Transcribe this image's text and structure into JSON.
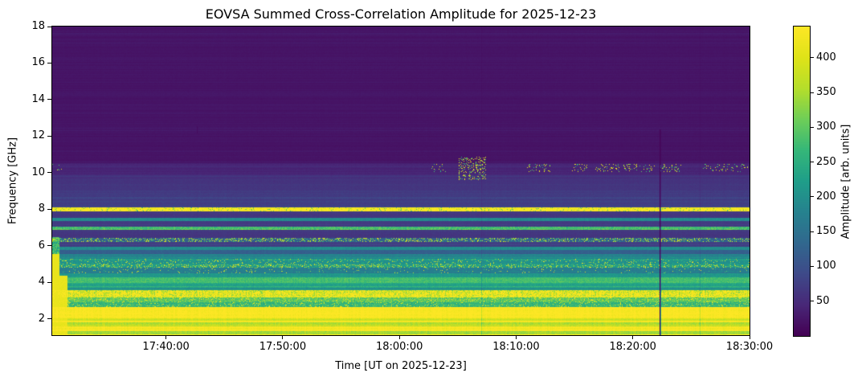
{
  "figure": {
    "background": "#ffffff",
    "text_color": "#000000"
  },
  "chart_data": {
    "type": "heatmap",
    "title": "EOVSA Summed Cross-Correlation Amplitude for 2025-12-23",
    "xlabel": "Time [UT on 2025-12-23]",
    "ylabel": "Frequency [GHz]",
    "colormap": "viridis",
    "grid": false,
    "x_axis": {
      "unit": "UT",
      "start": "17:30:15",
      "end": "18:30:00",
      "tick_labels": [
        "17:40:00",
        "17:50:00",
        "18:00:00",
        "18:10:00",
        "18:20:00",
        "18:30:00"
      ]
    },
    "y_axis": {
      "min": 1.1,
      "max": 18.0,
      "ticks": [
        2,
        4,
        6,
        8,
        10,
        12,
        14,
        16,
        18
      ]
    },
    "colorbar": {
      "label": "Amplitude [arb. units]",
      "min": 0,
      "max": 445,
      "ticks": [
        50,
        100,
        150,
        200,
        250,
        300,
        350,
        400
      ]
    },
    "frequency_bands": [
      {
        "f_hi": 18.01,
        "f_lo": 10.5,
        "amp": 22,
        "noise": 0.18,
        "stripe": 0.34
      },
      {
        "f_hi": 10.5,
        "f_lo": 9.9,
        "amp": 40,
        "noise": 0.15,
        "stripe": 0.22
      },
      {
        "f_hi": 9.9,
        "f_lo": 8.08,
        "amp": 52,
        "amp2": 80,
        "noise": 0.14,
        "stripe": 0.18
      },
      {
        "f_hi": 8.08,
        "f_lo": 7.88,
        "amp": 440,
        "noise": 0.1,
        "stripe": 0.04,
        "gap": 0.1
      },
      {
        "f_hi": 7.88,
        "f_lo": 7.52,
        "amp": 66,
        "noise": 0.15,
        "stripe": 0.2
      },
      {
        "f_hi": 7.52,
        "f_lo": 7.33,
        "amp": 195,
        "noise": 0.18,
        "stripe": 0.1
      },
      {
        "f_hi": 7.33,
        "f_lo": 7.06,
        "amp": 72,
        "noise": 0.15,
        "stripe": 0.2
      },
      {
        "f_hi": 7.06,
        "f_lo": 6.86,
        "amp": 285,
        "noise": 0.22,
        "stripe": 0.1
      },
      {
        "f_hi": 6.86,
        "f_lo": 6.42,
        "amp": 64,
        "noise": 0.15,
        "stripe": 0.22
      },
      {
        "f_hi": 6.42,
        "f_lo": 6.2,
        "amp": 112,
        "noise": 0.2,
        "stripe": 0.15,
        "speckle": 0.3
      },
      {
        "f_hi": 6.2,
        "f_lo": 5.95,
        "amp": 70,
        "noise": 0.15,
        "stripe": 0.2
      },
      {
        "f_hi": 5.95,
        "f_lo": 5.76,
        "amp": 195,
        "noise": 0.15,
        "stripe": 0.1
      },
      {
        "f_hi": 5.76,
        "f_lo": 5.54,
        "amp": 120,
        "noise": 0.15,
        "stripe": 0.15
      },
      {
        "f_hi": 5.54,
        "f_lo": 5.28,
        "amp": 175,
        "noise": 0.15,
        "stripe": 0.12
      },
      {
        "f_hi": 5.28,
        "f_lo": 4.97,
        "amp": 205,
        "noise": 0.15,
        "stripe": 0.12,
        "speckle": 0.1
      },
      {
        "f_hi": 4.97,
        "f_lo": 4.8,
        "amp": 215,
        "noise": 0.18,
        "stripe": 0.1,
        "speckle": 0.3
      },
      {
        "f_hi": 4.8,
        "f_lo": 4.5,
        "amp": 168,
        "noise": 0.15,
        "stripe": 0.15,
        "speckle": 0.05
      },
      {
        "f_hi": 4.5,
        "f_lo": 4.27,
        "amp": 210,
        "noise": 0.15,
        "stripe": 0.12
      },
      {
        "f_hi": 4.27,
        "f_lo": 3.97,
        "amp": 280,
        "noise": 0.15,
        "stripe": 0.1
      },
      {
        "f_hi": 3.97,
        "f_lo": 3.69,
        "amp": 235,
        "noise": 0.15,
        "stripe": 0.12
      },
      {
        "f_hi": 3.69,
        "f_lo": 3.57,
        "amp": 205,
        "noise": 0.15,
        "stripe": 0.1
      },
      {
        "f_hi": 3.57,
        "f_lo": 3.18,
        "amp": 360,
        "noise": 0.28,
        "stripe": 0.08,
        "dash": 0.5
      },
      {
        "f_hi": 3.18,
        "f_lo": 2.9,
        "amp": 300,
        "noise": 0.2,
        "stripe": 0.1,
        "speckle": 0.25
      },
      {
        "f_hi": 2.9,
        "f_lo": 2.66,
        "amp": 262,
        "noise": 0.2,
        "stripe": 0.1,
        "speckle": 0.2
      },
      {
        "f_hi": 2.66,
        "f_lo": 2.02,
        "amp": 438,
        "noise": 0.06,
        "stripe": 0.04
      },
      {
        "f_hi": 2.02,
        "f_lo": 1.9,
        "amp": 385,
        "noise": 0.08,
        "stripe": 0.05
      },
      {
        "f_hi": 1.9,
        "f_lo": 1.8,
        "amp": 438,
        "noise": 0.06,
        "stripe": 0.04
      },
      {
        "f_hi": 1.8,
        "f_lo": 1.58,
        "amp": 352,
        "noise": 0.1,
        "stripe": 0.08
      },
      {
        "f_hi": 1.58,
        "f_lo": 1.3,
        "amp": 432,
        "noise": 0.06,
        "stripe": 0.05
      },
      {
        "f_hi": 1.3,
        "f_lo": 1.13,
        "amp": 345,
        "noise": 0.1,
        "stripe": 0.08
      },
      {
        "f_hi": 1.13,
        "f_lo": 0.9,
        "amp": 425,
        "noise": 0.08,
        "stripe": 0.05
      }
    ],
    "features": {
      "initial_bright_column": {
        "until_frac": 0.021,
        "f_max": 4.35,
        "amp": 425,
        "narrow_until_frac": 0.0095,
        "narrow_f_max": 5.55,
        "mid_f_max": 6.45,
        "mid_amp": 285
      },
      "speckle_band": {
        "f_lo": 10.02,
        "f_hi": 10.48,
        "clusters": [
          {
            "from": 0.0,
            "to": 0.017,
            "density": 0.07
          },
          {
            "from": 0.54,
            "to": 0.57,
            "density": 0.07
          },
          {
            "from": 0.582,
            "to": 0.622,
            "density": 0.22,
            "tall": true
          },
          {
            "from": 0.68,
            "to": 0.715,
            "density": 0.12
          },
          {
            "from": 0.742,
            "to": 0.767,
            "density": 0.1
          },
          {
            "from": 0.777,
            "to": 0.813,
            "density": 0.13
          },
          {
            "from": 0.818,
            "to": 0.838,
            "density": 0.16
          },
          {
            "from": 0.841,
            "to": 0.865,
            "density": 0.12
          },
          {
            "from": 0.871,
            "to": 0.902,
            "density": 0.14
          },
          {
            "from": 0.932,
            "to": 1.0,
            "density": 0.1
          }
        ]
      },
      "dark_vertical_line": {
        "frac": 0.871,
        "f_hi": 12.35,
        "amp": 6
      },
      "faint_vertical_lines": [
        {
          "frac": 0.615,
          "factor": 0.85
        },
        {
          "frac": 0.928,
          "factor": 0.85
        }
      ],
      "dark_tick": {
        "frac": 0.207,
        "f_hi": 12.55,
        "f_lo": 12.15,
        "amp": 14
      }
    }
  }
}
